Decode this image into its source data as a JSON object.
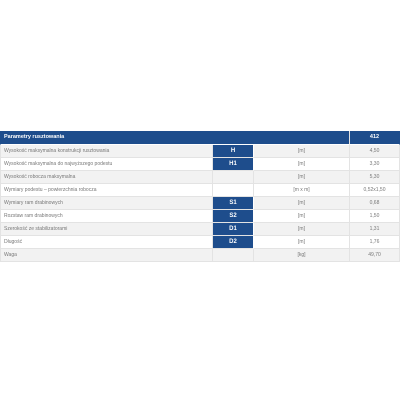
{
  "header": {
    "title": "Parametry rusztowania",
    "model": "412"
  },
  "rows": [
    {
      "label": "Wysokość maksymalna konstrukcji rusztowania",
      "symbol": "H",
      "unit": "[m]",
      "value": "4,50"
    },
    {
      "label": "Wysokość maksymalna do najwyższego podestu",
      "symbol": "H1",
      "unit": "[m]",
      "value": "3,30"
    },
    {
      "label": "Wysokość robocza maksymalna",
      "symbol": "",
      "unit": "[m]",
      "value": "5,30"
    },
    {
      "label": "Wymiary podestu – powierzchnia robocza",
      "symbol": "",
      "unit": "[m x m]",
      "value": "0,52x1,50"
    },
    {
      "label": "Wymiary ram drabinowych",
      "symbol": "S1",
      "unit": "[m]",
      "value": "0,68"
    },
    {
      "label": "Rozstaw ram drabinowych",
      "symbol": "S2",
      "unit": "[m]",
      "value": "1,50"
    },
    {
      "label": "Szerokość ze stabilizatorami",
      "symbol": "D1",
      "unit": "[m]",
      "value": "1,31"
    },
    {
      "label": "Długość",
      "symbol": "D2",
      "unit": "[m]",
      "value": "1,76"
    },
    {
      "label": "Waga",
      "symbol": "",
      "unit": "[kg]",
      "value": "49,70"
    }
  ],
  "colors": {
    "header_bg": "#1e4d8c",
    "symbol_bg": "#1e4d8c",
    "row_alt_bg": "#f2f2f2",
    "text": "#777777"
  }
}
